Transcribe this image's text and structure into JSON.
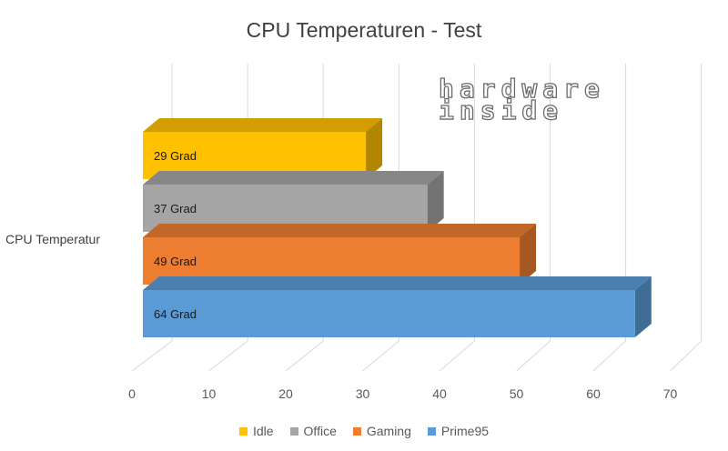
{
  "chart_data": {
    "type": "bar",
    "orientation": "horizontal",
    "style": "3d-clustered",
    "title": "CPU Temperaturen - Test",
    "categories": [
      "CPU Temperatur"
    ],
    "xlim": [
      0,
      70
    ],
    "ticks": [
      0,
      10,
      20,
      30,
      40,
      50,
      60,
      70
    ],
    "grid": true,
    "legend_position": "bottom",
    "series": [
      {
        "name": "Idle",
        "values": [
          29
        ],
        "label": "29 Grad",
        "color": "#FFC000"
      },
      {
        "name": "Office",
        "values": [
          37
        ],
        "label": "37 Grad",
        "color": "#A5A5A5"
      },
      {
        "name": "Gaming",
        "values": [
          49
        ],
        "label": "49 Grad",
        "color": "#ED7D31"
      },
      {
        "name": "Prime95",
        "values": [
          64
        ],
        "label": "64 Grad",
        "color": "#5B9BD5"
      }
    ]
  },
  "watermark": {
    "line1": "hardware",
    "line2": "inside"
  }
}
